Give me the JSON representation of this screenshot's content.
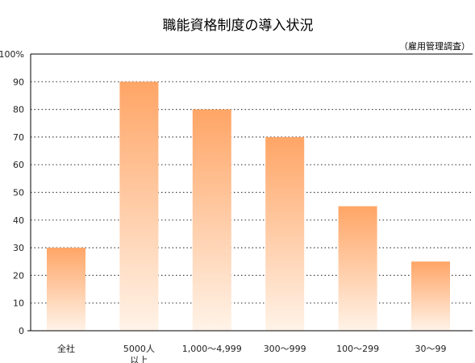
{
  "chart_data": {
    "type": "bar",
    "title": "職能資格制度の導入状況",
    "source_note": "（雇用管理調査）",
    "categories": [
      [
        "全社"
      ],
      [
        "5000人",
        "以上"
      ],
      [
        "1,000～4,999"
      ],
      [
        "300～999"
      ],
      [
        "100～299"
      ],
      [
        "30～99"
      ]
    ],
    "values": [
      30,
      90,
      80,
      70,
      45,
      25
    ],
    "ylim": [
      0,
      100
    ],
    "yticks": [
      "0",
      "10",
      "20",
      "30",
      "40",
      "50",
      "60",
      "70",
      "80",
      "90",
      "100%"
    ],
    "grid": true,
    "legend": "none",
    "colors": {
      "bar_top": "#FFA566",
      "bar_bottom": "#FFF3E8",
      "grid": "#444444",
      "axis": "#000000",
      "text": "#222222"
    }
  }
}
